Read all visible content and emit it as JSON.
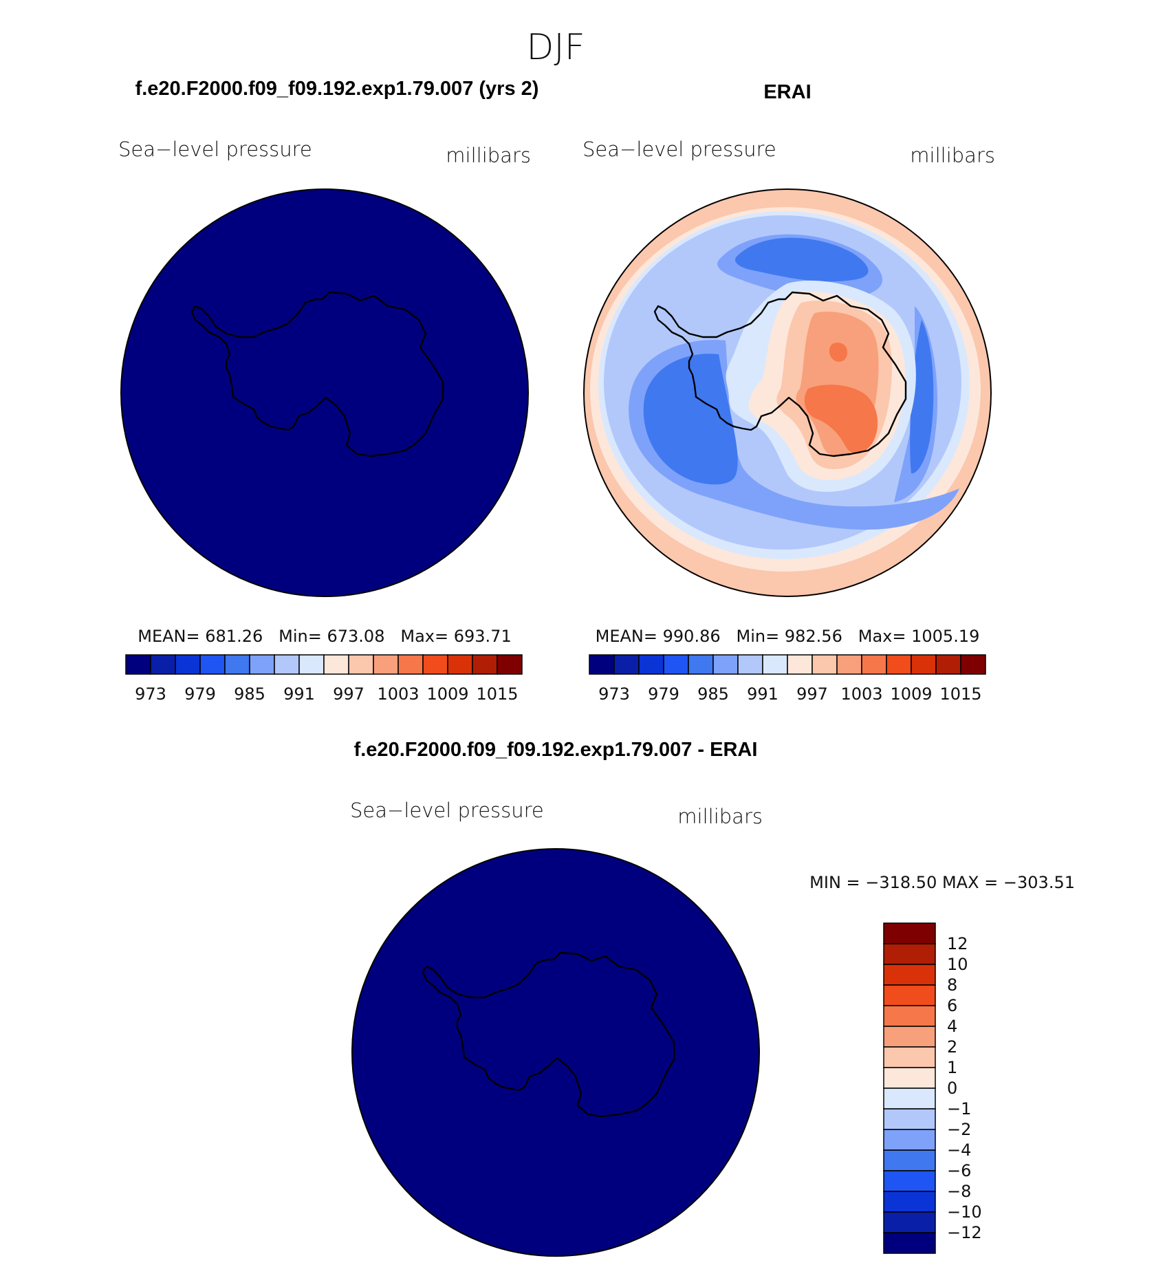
{
  "season": "DJF",
  "panels": [
    {
      "title": "f.e20.F2000.f09_f09.192.exp1.79.007 (yrs 2)",
      "variable": "Sea−level pressure",
      "units": "millibars",
      "stats": {
        "mean_label": "MEAN=",
        "mean": "681.26",
        "min_label": "Min=",
        "min": "673.08",
        "max_label": "Max=",
        "max": "693.71"
      },
      "field": "uniform",
      "fill_color": "#00007f"
    },
    {
      "title": "ERAI",
      "variable": "Sea−level pressure",
      "units": "millibars",
      "stats": {
        "mean_label": "MEAN=",
        "mean": "990.86",
        "min_label": "Min=",
        "min": "982.56",
        "max_label": "Max=",
        "max": "1005.19"
      },
      "field": "contoured"
    }
  ],
  "abs_colorbar": {
    "colors": [
      "#00007f",
      "#0a1fa8",
      "#0b34d6",
      "#1f55f2",
      "#4078f0",
      "#7ea2fa",
      "#b2c8fb",
      "#d9e8fd",
      "#fde7da",
      "#fbc7ad",
      "#f8a07b",
      "#f6774a",
      "#f04c1c",
      "#d93209",
      "#b01e05",
      "#7f0000"
    ],
    "labels": [
      "973",
      "979",
      "985",
      "991",
      "997",
      "1003",
      "1009",
      "1015"
    ]
  },
  "diff_panel": {
    "title": "f.e20.F2000.f09_f09.192.exp1.79.007 - ERAI",
    "variable": "Sea−level pressure",
    "units": "millibars",
    "minmax_text": "MIN = −318.50 MAX = −303.51",
    "fill_color": "#00007f"
  },
  "diff_colorbar": {
    "colors_top_to_bottom": [
      "#7f0000",
      "#b01e05",
      "#d93209",
      "#f04c1c",
      "#f6774a",
      "#f8a07b",
      "#fbc7ad",
      "#fde7da",
      "#d9e8fd",
      "#b2c8fb",
      "#7ea2fa",
      "#4078f0",
      "#1f55f2",
      "#0b34d6",
      "#0a1fa8",
      "#00007f"
    ],
    "labels_top_to_bottom": [
      "12",
      "10",
      "8",
      "6",
      "4",
      "2",
      "1",
      "0",
      "−1",
      "−2",
      "−4",
      "−6",
      "−8",
      "−10",
      "−12"
    ]
  }
}
